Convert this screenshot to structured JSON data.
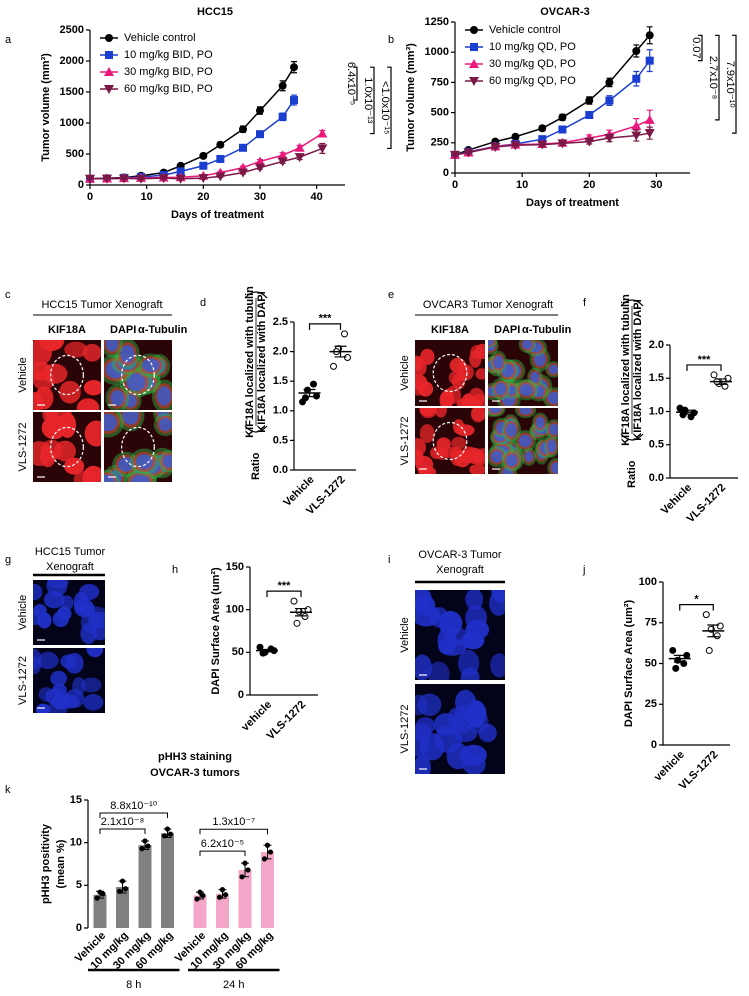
{
  "chart_data": [
    {
      "panel": "a",
      "type": "line",
      "title": "HCC15",
      "xlabel": "Days of treatment",
      "ylabel": "Tumor volume (mm³)",
      "xlim": [
        0,
        45
      ],
      "xticks": [
        0,
        10,
        20,
        30,
        40
      ],
      "ylim": [
        0,
        2500
      ],
      "yticks": [
        0,
        500,
        1000,
        1500,
        2000,
        2500
      ],
      "legend": "upper left",
      "series": [
        {
          "name": "Vehicle control",
          "color": "#000000",
          "marker": "circle",
          "x": [
            0,
            3,
            6,
            9,
            13,
            16,
            20,
            23,
            27,
            30,
            34,
            36
          ],
          "values": [
            100,
            110,
            120,
            150,
            200,
            310,
            470,
            650,
            900,
            1200,
            1600,
            1900
          ],
          "errors": [
            10,
            10,
            10,
            15,
            20,
            25,
            30,
            40,
            50,
            60,
            80,
            90
          ]
        },
        {
          "name": "10 mg/kg BID, PO",
          "color": "#1a3fd0",
          "marker": "square",
          "x": [
            0,
            3,
            6,
            9,
            13,
            16,
            20,
            23,
            27,
            30,
            34,
            36
          ],
          "values": [
            100,
            105,
            115,
            130,
            160,
            220,
            310,
            420,
            600,
            820,
            1100,
            1370
          ],
          "errors": [
            10,
            10,
            10,
            10,
            15,
            20,
            25,
            30,
            40,
            50,
            60,
            80
          ]
        },
        {
          "name": "30 mg/kg BID, PO",
          "color": "#e8197a",
          "marker": "triangle-up",
          "x": [
            0,
            3,
            6,
            9,
            13,
            16,
            20,
            23,
            27,
            30,
            34,
            37,
            41
          ],
          "values": [
            100,
            105,
            110,
            115,
            120,
            125,
            150,
            200,
            280,
            380,
            480,
            600,
            830
          ],
          "errors": [
            10,
            10,
            10,
            10,
            10,
            10,
            15,
            20,
            25,
            30,
            40,
            40,
            50
          ]
        },
        {
          "name": "60 mg/kg BID, PO",
          "color": "#7b1846",
          "marker": "triangle-down",
          "x": [
            0,
            3,
            6,
            9,
            13,
            16,
            20,
            23,
            27,
            30,
            34,
            37,
            41
          ],
          "values": [
            100,
            100,
            105,
            100,
            110,
            100,
            110,
            140,
            200,
            280,
            380,
            450,
            590
          ],
          "errors": [
            10,
            10,
            10,
            10,
            10,
            10,
            10,
            15,
            20,
            25,
            30,
            40,
            80
          ]
        }
      ],
      "comparisons": [
        "6.4x10⁻⁵",
        "1.0x10⁻¹³",
        "<1.0x10⁻¹⁵"
      ]
    },
    {
      "panel": "b",
      "type": "line",
      "title": "OVCAR-3",
      "xlabel": "Days of treatment",
      "ylabel": "Tumor volume (mm³)",
      "xlim": [
        0,
        35
      ],
      "xticks": [
        0,
        10,
        20,
        30
      ],
      "ylim": [
        0,
        1250
      ],
      "yticks": [
        0,
        250,
        500,
        750,
        1000,
        1250
      ],
      "legend": "upper left",
      "series": [
        {
          "name": "Vehicle control",
          "color": "#000000",
          "marker": "circle",
          "x": [
            0,
            2,
            6,
            9,
            13,
            16,
            20,
            23,
            27,
            29
          ],
          "values": [
            150,
            190,
            260,
            300,
            370,
            460,
            600,
            750,
            1010,
            1140
          ],
          "errors": [
            10,
            10,
            15,
            15,
            20,
            25,
            30,
            35,
            50,
            70
          ]
        },
        {
          "name": "10 mg/kg QD, PO",
          "color": "#1a3fd0",
          "marker": "square",
          "x": [
            0,
            2,
            6,
            9,
            13,
            16,
            20,
            23,
            27,
            29
          ],
          "values": [
            150,
            175,
            220,
            240,
            280,
            360,
            480,
            600,
            780,
            930
          ],
          "errors": [
            10,
            10,
            10,
            15,
            15,
            20,
            25,
            40,
            60,
            90
          ]
        },
        {
          "name": "30 mg/kg QD, PO",
          "color": "#e8197a",
          "marker": "triangle-up",
          "x": [
            0,
            2,
            6,
            9,
            13,
            16,
            20,
            23,
            27,
            29
          ],
          "values": [
            150,
            170,
            220,
            235,
            240,
            250,
            290,
            320,
            390,
            440
          ],
          "errors": [
            10,
            10,
            10,
            10,
            15,
            15,
            25,
            35,
            60,
            80
          ]
        },
        {
          "name": "60 mg/kg QD, PO",
          "color": "#7b1846",
          "marker": "triangle-down",
          "x": [
            0,
            2,
            6,
            9,
            13,
            16,
            20,
            23,
            27,
            29
          ],
          "values": [
            150,
            170,
            215,
            230,
            235,
            245,
            260,
            290,
            310,
            330
          ],
          "errors": [
            10,
            10,
            10,
            10,
            15,
            15,
            20,
            30,
            45,
            50
          ]
        }
      ],
      "comparisons": [
        "0.07",
        "2.7x10⁻⁸",
        "7.9x10⁻¹⁰"
      ]
    },
    {
      "panel": "d",
      "type": "strip",
      "ylabel": "Ratio",
      "ylabel_numerator": "KIF18A localized with tubulin",
      "ylabel_denominator": "KIF18A localized with DAPI",
      "categories": [
        "Vehicle",
        "VLS-1272"
      ],
      "markers": [
        "filled",
        "open"
      ],
      "values": [
        [
          1.15,
          1.25,
          1.35,
          1.45,
          1.22
        ],
        [
          1.75,
          1.9,
          2.05,
          2.3,
          2.0
        ]
      ],
      "means": [
        1.3,
        2.0
      ],
      "sems": [
        0.06,
        0.09
      ],
      "ylim": [
        0,
        2.5
      ],
      "yticks": [
        {
          "value": 0,
          "label": "0.0"
        },
        0.5,
        {
          "value": 1,
          "label": "1.0"
        },
        1.5,
        {
          "value": 2,
          "label": "2.0"
        },
        2.5
      ],
      "significance": "***"
    },
    {
      "panel": "f",
      "type": "strip",
      "ylabel": "Ratio",
      "ylabel_numerator": "KIF18A localized with tubulin",
      "ylabel_denominator": "KIF18A localized with DAPI",
      "categories": [
        "Vehicle",
        "VLS-1272"
      ],
      "markers": [
        "filled",
        "open"
      ],
      "values": [
        [
          1.05,
          0.98,
          1.02,
          0.92,
          0.95
        ],
        [
          1.55,
          1.5,
          1.42,
          1.38,
          1.45
        ]
      ],
      "means": [
        0.99,
        1.45
      ],
      "sems": [
        0.03,
        0.04
      ],
      "ylim": [
        0,
        2
      ],
      "yticks": [
        {
          "value": 0,
          "label": "0.0"
        },
        0.5,
        {
          "value": 1,
          "label": "1.0"
        },
        1.5,
        {
          "value": 2,
          "label": "2.0"
        }
      ],
      "significance": "***"
    },
    {
      "panel": "h",
      "type": "strip",
      "ylabel": "DAPI Surface Area (um²)",
      "categories": [
        "vehicle",
        "VLS-1272"
      ],
      "markers": [
        "filled",
        "open"
      ],
      "values": [
        [
          56,
          52,
          50,
          54,
          49
        ],
        [
          110,
          100,
          98,
          92,
          84
        ]
      ],
      "means": [
        52,
        97
      ],
      "sems": [
        1.4,
        4.3
      ],
      "ylim": [
        0,
        150
      ],
      "yticks": [
        0,
        50,
        100,
        150
      ],
      "significance": "***"
    },
    {
      "panel": "j",
      "type": "strip",
      "ylabel": "DAPI Surface Area (um²)",
      "categories": [
        "vehicle",
        "VLS-1272"
      ],
      "markers": [
        "filled",
        "open"
      ],
      "values": [
        [
          58,
          55,
          52,
          50,
          47
        ],
        [
          80,
          73,
          71,
          67,
          58
        ]
      ],
      "means": [
        53,
        70
      ],
      "sems": [
        2,
        3.6
      ],
      "ylim": [
        0,
        100
      ],
      "yticks": [
        0,
        25,
        50,
        75,
        100
      ],
      "significance": "*"
    },
    {
      "panel": "k",
      "type": "bar",
      "title": [
        "pHH3 staining",
        "OVCAR-3 tumors"
      ],
      "ylabel": [
        "pHH3 positivity",
        "(mean %)"
      ],
      "categories": [
        "Vehicle",
        "10 mg/kg",
        "30 mg/kg",
        "60 mg/kg"
      ],
      "ylim": [
        0,
        15
      ],
      "yticks": [
        0,
        5,
        10,
        15
      ],
      "series": [
        {
          "name": "8 h",
          "color": "#808080",
          "values": [
            3.9,
            4.8,
            9.7,
            11.1
          ],
          "errors": [
            0.4,
            0.7,
            0.5,
            0.5
          ],
          "points": [
            [
              3.5,
              4.2,
              4.0
            ],
            [
              4.3,
              5.5,
              4.6
            ],
            [
              9.3,
              10.2,
              9.6
            ],
            [
              10.8,
              11.6,
              11.0
            ]
          ],
          "comparisons": [
            "2.1x10⁻⁸",
            "8.8x10⁻¹⁰"
          ]
        },
        {
          "name": "24 h",
          "color": "#f4a6c8",
          "values": [
            3.8,
            4.0,
            6.8,
            8.9
          ],
          "errors": [
            0.4,
            0.5,
            0.8,
            0.8
          ],
          "points": [
            [
              3.4,
              4.2,
              3.8
            ],
            [
              3.6,
              4.5,
              3.9
            ],
            [
              6.0,
              7.6,
              6.8
            ],
            [
              8.1,
              9.7,
              8.9
            ]
          ],
          "comparisons": [
            "6.2x10⁻⁵",
            "1.3x10⁻⁷"
          ]
        }
      ]
    }
  ],
  "images": [
    {
      "panel": "c",
      "title": [
        "HCC15 Tumor Xenograft"
      ],
      "channels": [
        "KIF18A",
        "DAPI",
        "α-Tubulin"
      ],
      "channel_colors": [
        "#e8262a",
        "#2f5fe0",
        "#2fb84a"
      ],
      "rows": [
        "Vehicle",
        "VLS-1272"
      ]
    },
    {
      "panel": "e",
      "title": [
        "OVCAR3 Tumor Xenograft"
      ],
      "channels": [
        "KIF18A",
        "DAPI",
        "α-Tubulin"
      ],
      "channel_colors": [
        "#e8262a",
        "#2f5fe0",
        "#2fb84a"
      ],
      "rows": [
        "Vehicle",
        "VLS-1272"
      ]
    },
    {
      "panel": "g",
      "title": [
        "HCC15 Tumor",
        "Xenograft"
      ],
      "channel_colors": [
        "#2030c8"
      ],
      "rows": [
        "Vehicle",
        "VLS-1272"
      ]
    },
    {
      "panel": "i",
      "title": [
        "OVCAR-3 Tumor",
        "Xenograft"
      ],
      "channel_colors": [
        "#2030c8"
      ],
      "rows": [
        "Vehicle",
        "VLS-1272"
      ]
    }
  ]
}
